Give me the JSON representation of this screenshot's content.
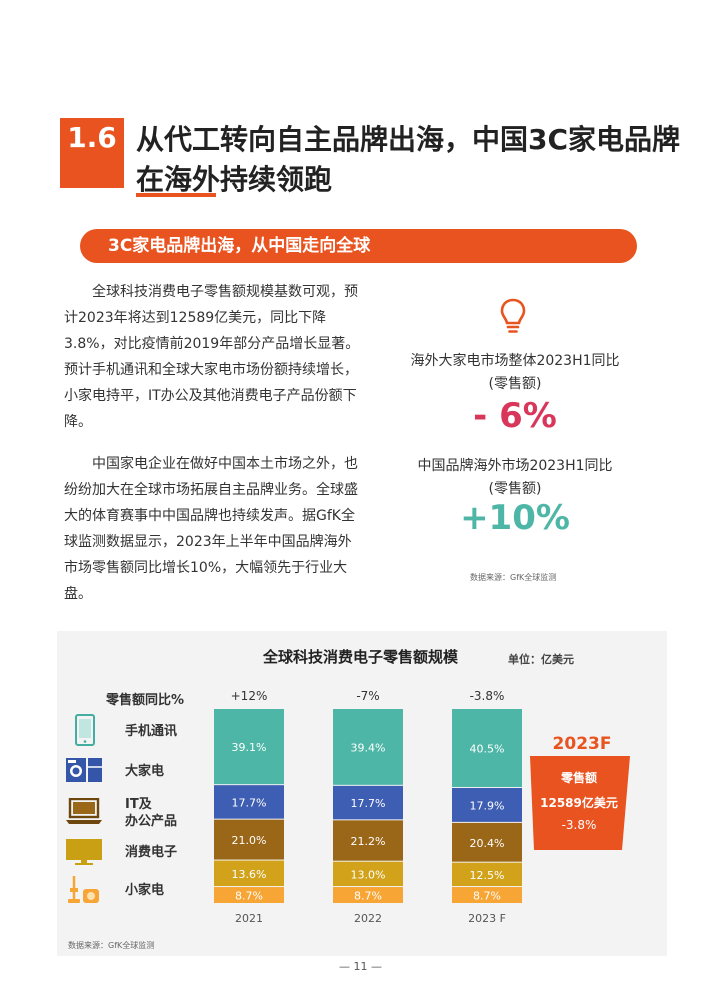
{
  "section": {
    "number": "1.6",
    "title": "从代工转向自主品牌出海，中国3C家电品牌在海外持续领跑",
    "banner": "3C家电品牌出海，从中国走向全球"
  },
  "body": {
    "paragraph1": "全球科技消费电子零售额规模基数可观，预计2023年将达到12589亿美元，同比下降3.8%，对比疫情前2019年部分产品增长显著。预计手机通讯和全球大家电市场份额持续增长，小家电持平，IT办公及其他消费电子产品份额下降。",
    "paragraph2": "中国家电企业在做好中国本土市场之外，也纷纷加大在全球市场拓展自主品牌业务。全球盛大的体育赛事中中国品牌也持续发声。据GfK全球监测数据显示，2023年上半年中国品牌海外市场零售额同比增长10%，大幅领先于行业大盘。"
  },
  "stats": [
    {
      "label_line1": "海外大家电市场整体2023H1同比",
      "label_line2": "(零售额)",
      "value": "- 6%",
      "color": "#D8365A"
    },
    {
      "label_line1": "中国品牌海外市场2023H1同比",
      "label_line2": "(零售额)",
      "value": "+10%",
      "color": "#4DB6A6"
    }
  ],
  "source_top": "数据来源：GfK全球监测",
  "chart_data": {
    "type": "bar",
    "stacked": true,
    "title": "全球科技消费电子零售额规模",
    "unit": "单位：亿美元",
    "growth_header": "零售额同比%",
    "categories": [
      "2021",
      "2022",
      "2023 F"
    ],
    "growth": [
      "+12%",
      "-7%",
      "-3.8%"
    ],
    "series": [
      {
        "name": "小家电",
        "values": [
          8.7,
          8.7,
          8.7
        ],
        "color": "#F7A535",
        "text_color": "#F7A535",
        "icon": "vacuum-icon"
      },
      {
        "name": "消费电子",
        "values": [
          13.6,
          13.0,
          12.5
        ],
        "color": "#D1A21A",
        "text_color": "#C9A013",
        "icon": "tv-icon"
      },
      {
        "name": "IT及\n办公产品",
        "values": [
          21.0,
          21.2,
          20.4
        ],
        "color": "#9A6617",
        "text_color": "#7A4E12",
        "icon": "laptop-icon"
      },
      {
        "name": "大家电",
        "values": [
          17.7,
          17.7,
          17.9
        ],
        "color": "#3E5EB3",
        "text_color": "#3555A8",
        "icon": "washer-fridge-icon"
      },
      {
        "name": "手机通讯",
        "values": [
          39.1,
          39.4,
          40.5
        ],
        "color": "#4DB6A6",
        "text_color": "#42ADA0",
        "icon": "phone-icon"
      }
    ],
    "value_suffix": "%",
    "forecast": {
      "label": "2023F",
      "line1": "零售额",
      "line2": "12589亿美元",
      "line3": "-3.8%"
    }
  },
  "source_bottom": "数据来源：GfK全球监测",
  "page_number": "— 11 —"
}
